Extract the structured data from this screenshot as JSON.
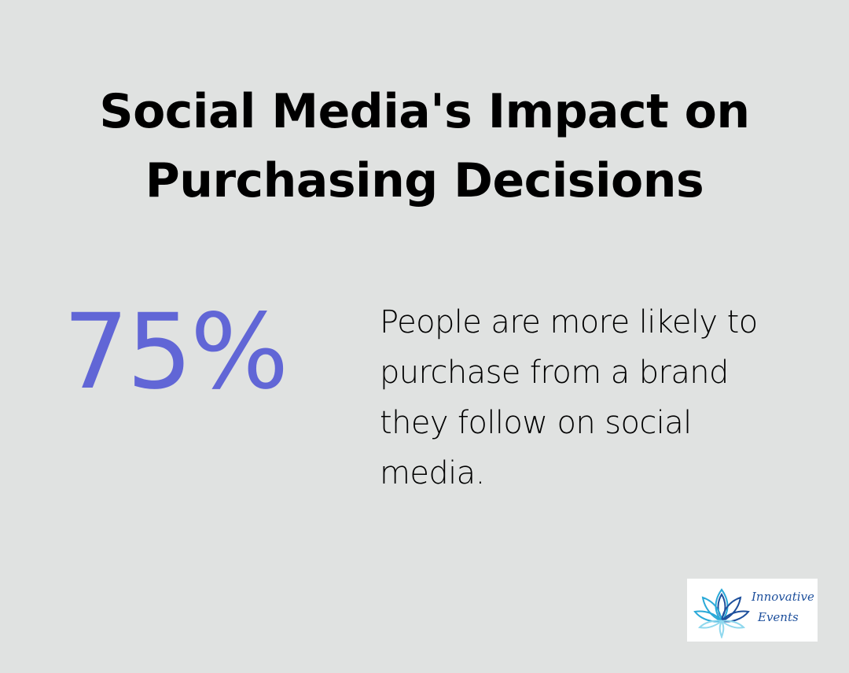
{
  "colors": {
    "background": "#e0e2e1",
    "accent": "#6166d6",
    "text": "#000000",
    "logo_background": "#ffffff",
    "logo_teal": "#2aa9d8",
    "logo_navy": "#1d4f9c",
    "logo_light": "#8fd8ee"
  },
  "title": "Social Media's Impact on Purchasing Decisions",
  "stat": {
    "value": "75%",
    "description": "People are more likely to purchase from a brand they follow on social media."
  },
  "logo": {
    "icon": "lotus-flower-icon",
    "line1": "Innovative",
    "line2": "Events"
  }
}
